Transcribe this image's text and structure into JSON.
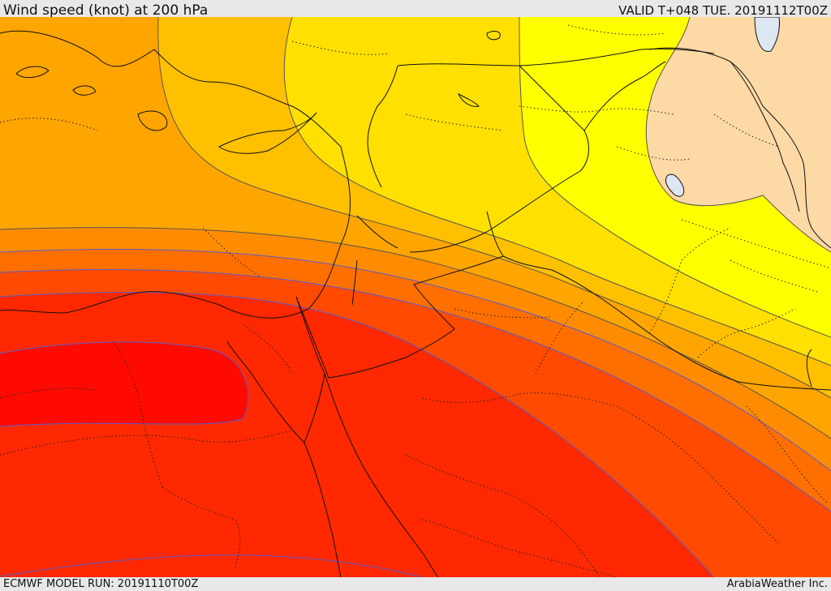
{
  "header": {
    "title": "Wind speed (knot) at 200 hPa",
    "valid": "VALID T+048 TUE. 20191112T00Z"
  },
  "footer": {
    "model_run": "ECMWF MODEL RUN: 20191110T00Z",
    "brand": "ArabiaWeather Inc."
  },
  "colors": {
    "peach": "#fdd9a5",
    "yellow_bright": "#ffff00",
    "yellow": "#ffe000",
    "orange_yellow": "#ffc000",
    "orange_light": "#ffa500",
    "orange": "#ff8c00",
    "orange_dark": "#ff6f00",
    "red_orange": "#ff4a00",
    "red": "#ff2800",
    "red_core": "#ff0a00",
    "contour_gray": "#555555",
    "contour_blue": "#5b5bc8",
    "lake_fill": "#dde7f2"
  }
}
